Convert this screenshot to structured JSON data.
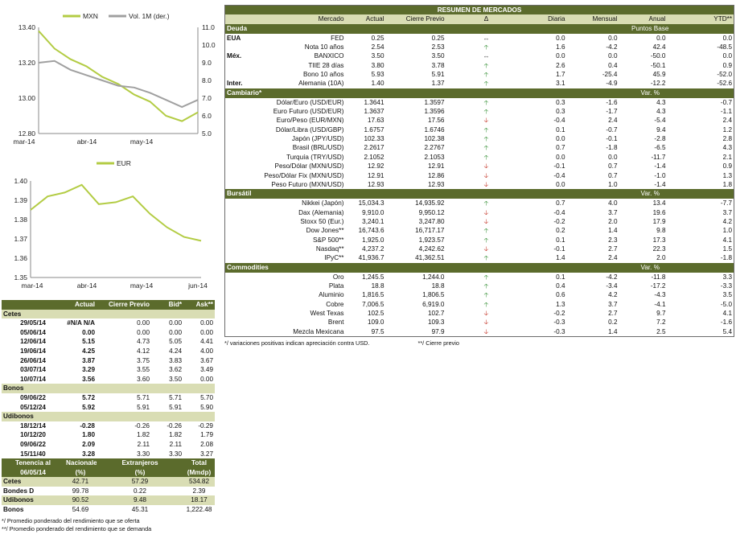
{
  "charts": [
    {
      "legend": [
        {
          "name": "MXN",
          "color": "#b3cc44"
        },
        {
          "name": "Vol. 1M (der.)",
          "color": "#a0a0a0"
        }
      ],
      "xlabels": [
        "mar-14",
        "abr-14",
        "may-14"
      ],
      "yleft": [
        "13.40",
        "13.20",
        "13.00",
        "12.80"
      ],
      "yright": [
        "11.0",
        "10.0",
        "9.0",
        "8.0",
        "7.0",
        "6.0",
        "5.0"
      ]
    },
    {
      "legend": [
        {
          "name": "EUR",
          "color": "#b3cc44"
        }
      ],
      "xlabels": [
        "mar-14",
        "abr-14",
        "may-14",
        "jun-14"
      ],
      "yleft": [
        "1.40",
        "1.39",
        "1.38",
        "1.37",
        "1.36",
        "1.35"
      ]
    }
  ],
  "chart_data": [
    {
      "type": "line",
      "x": [
        0,
        10,
        20,
        30,
        40,
        50,
        60,
        70,
        80,
        90,
        100
      ],
      "ylim": [
        12.8,
        13.4
      ],
      "y2lim": [
        5.0,
        11.0
      ],
      "series": [
        {
          "name": "MXN",
          "axis": "left",
          "values": [
            13.38,
            13.28,
            13.22,
            13.18,
            13.12,
            13.08,
            13.02,
            12.98,
            12.9,
            12.87,
            12.92
          ]
        },
        {
          "name": "Vol. 1M (der.)",
          "axis": "right",
          "values": [
            9.0,
            9.1,
            8.6,
            8.3,
            8.0,
            7.7,
            7.6,
            7.3,
            6.9,
            6.5,
            6.9
          ]
        }
      ]
    },
    {
      "type": "line",
      "x": [
        0,
        10,
        20,
        30,
        40,
        50,
        60,
        70,
        80,
        90,
        100
      ],
      "ylim": [
        1.35,
        1.4
      ],
      "series": [
        {
          "name": "EUR",
          "values": [
            1.385,
            1.392,
            1.394,
            1.398,
            1.388,
            1.389,
            1.392,
            1.383,
            1.376,
            1.371,
            1.369
          ]
        }
      ]
    }
  ],
  "right": {
    "title": "RESUMEN DE MERCADOS",
    "cols": [
      "Mercado",
      "Actual",
      "Cierre Previo",
      "Δ",
      "Diaria",
      "Mensual",
      "Anual",
      "YTD**"
    ],
    "sections": [
      {
        "name": "Deuda",
        "unit": "Puntos Base",
        "rows": [
          {
            "g": "EUA",
            "n": "FED",
            "a": "0.25",
            "p": "0.25",
            "d": "eq",
            "v": [
              "0.0",
              "0.0",
              "0.0",
              "0.0"
            ]
          },
          {
            "g": "",
            "n": "Nota 10 años",
            "a": "2.54",
            "p": "2.53",
            "d": "up",
            "v": [
              "1.6",
              "-4.2",
              "42.4",
              "-48.5"
            ]
          },
          {
            "g": "Méx.",
            "n": "BANXICO",
            "a": "3.50",
            "p": "3.50",
            "d": "eq",
            "v": [
              "0.0",
              "0.0",
              "-50.0",
              "0.0"
            ]
          },
          {
            "g": "",
            "n": "TIIE 28 días",
            "a": "3.80",
            "p": "3.78",
            "d": "up",
            "v": [
              "2.6",
              "0.4",
              "-50.1",
              "0.9"
            ]
          },
          {
            "g": "",
            "n": "Bono 10 años",
            "a": "5.93",
            "p": "5.91",
            "d": "up",
            "v": [
              "1.7",
              "-25.4",
              "45.9",
              "-52.0"
            ]
          },
          {
            "g": "Inter.",
            "n": "Alemania (10A)",
            "a": "1.40",
            "p": "1.37",
            "d": "up",
            "v": [
              "3.1",
              "-4.9",
              "-12.2",
              "-52.6"
            ]
          }
        ]
      },
      {
        "name": "Cambiario*",
        "unit": "Var. %",
        "rows": [
          {
            "g": "",
            "n": "Dólar/Euro (USD/EUR)",
            "a": "1.3641",
            "p": "1.3597",
            "d": "up",
            "v": [
              "0.3",
              "-1.6",
              "4.3",
              "-0.7"
            ]
          },
          {
            "g": "",
            "n": "Euro Futuro (USD/EUR)",
            "a": "1.3637",
            "p": "1.3596",
            "d": "up",
            "v": [
              "0.3",
              "-1.7",
              "4.3",
              "-1.1"
            ]
          },
          {
            "g": "",
            "n": "Euro/Peso  (EUR/MXN)",
            "a": "17.63",
            "p": "17.56",
            "d": "dn",
            "v": [
              "-0.4",
              "2.4",
              "-5.4",
              "2.4"
            ]
          },
          {
            "g": "",
            "n": "Dólar/Libra (USD/GBP)",
            "a": "1.6757",
            "p": "1.6746",
            "d": "up",
            "v": [
              "0.1",
              "-0.7",
              "9.4",
              "1.2"
            ]
          },
          {
            "g": "",
            "n": "Japón (JPY/USD)",
            "a": "102.33",
            "p": "102.38",
            "d": "up",
            "v": [
              "0.0",
              "-0.1",
              "-2.8",
              "2.8"
            ]
          },
          {
            "g": "",
            "n": "Brasil (BRL/USD)",
            "a": "2.2617",
            "p": "2.2767",
            "d": "up",
            "v": [
              "0.7",
              "-1.8",
              "-6.5",
              "4.3"
            ]
          },
          {
            "g": "",
            "n": "Turquía (TRY/USD)",
            "a": "2.1052",
            "p": "2.1053",
            "d": "up",
            "v": [
              "0.0",
              "0.0",
              "-11.7",
              "2.1"
            ]
          },
          {
            "g": "",
            "n": "Peso/Dólar (MXN/USD)",
            "a": "12.92",
            "p": "12.91",
            "d": "dn",
            "v": [
              "-0.1",
              "0.7",
              "-1.4",
              "0.9"
            ]
          },
          {
            "g": "",
            "n": "Peso/Dólar Fix (MXN/USD)",
            "a": "12.91",
            "p": "12.86",
            "d": "dn",
            "v": [
              "-0.4",
              "0.7",
              "-1.0",
              "1.3"
            ]
          },
          {
            "g": "",
            "n": "Peso Futuro (MXN/USD)",
            "a": "12.93",
            "p": "12.93",
            "d": "dn",
            "v": [
              "0.0",
              "1.0",
              "-1.4",
              "1.8"
            ]
          }
        ]
      },
      {
        "name": "Bursátil",
        "unit": "Var. %",
        "rows": [
          {
            "g": "",
            "n": "Nikkei (Japón)",
            "a": "15,034.3",
            "p": "14,935.92",
            "d": "up",
            "v": [
              "0.7",
              "4.0",
              "13.4",
              "-7.7"
            ]
          },
          {
            "g": "",
            "n": "Dax (Alemania)",
            "a": "9,910.0",
            "p": "9,950.12",
            "d": "dn",
            "v": [
              "-0.4",
              "3.7",
              "19.6",
              "3.7"
            ]
          },
          {
            "g": "",
            "n": "Stoxx 50 (Eur.)",
            "a": "3,240.1",
            "p": "3,247.80",
            "d": "dn",
            "v": [
              "-0.2",
              "2.0",
              "17.9",
              "4.2"
            ]
          },
          {
            "g": "",
            "n": "Dow Jones**",
            "a": "16,743.6",
            "p": "16,717.17",
            "d": "up",
            "v": [
              "0.2",
              "1.4",
              "9.8",
              "1.0"
            ]
          },
          {
            "g": "",
            "n": "S&P 500**",
            "a": "1,925.0",
            "p": "1,923.57",
            "d": "up",
            "v": [
              "0.1",
              "2.3",
              "17.3",
              "4.1"
            ]
          },
          {
            "g": "",
            "n": "Nasdaq**",
            "a": "4,237.2",
            "p": "4,242.62",
            "d": "dn",
            "v": [
              "-0.1",
              "2.7",
              "22.3",
              "1.5"
            ]
          },
          {
            "g": "",
            "n": "IPyC**",
            "a": "41,936.7",
            "p": "41,362.51",
            "d": "up",
            "v": [
              "1.4",
              "2.4",
              "2.0",
              "-1.8"
            ]
          }
        ]
      },
      {
        "name": "Commodities",
        "unit": "Var. %",
        "rows": [
          {
            "g": "",
            "n": "Oro",
            "a": "1,245.5",
            "p": "1,244.0",
            "d": "up",
            "v": [
              "0.1",
              "-4.2",
              "-11.8",
              "3.3"
            ]
          },
          {
            "g": "",
            "n": "Plata",
            "a": "18.8",
            "p": "18.8",
            "d": "up",
            "v": [
              "0.4",
              "-3.4",
              "-17.2",
              "-3.3"
            ]
          },
          {
            "g": "",
            "n": "Aluminio",
            "a": "1,816.5",
            "p": "1,806.5",
            "d": "up",
            "v": [
              "0.6",
              "4.2",
              "-4.3",
              "3.5"
            ]
          },
          {
            "g": "",
            "n": "Cobre",
            "a": "7,006.5",
            "p": "6,919.0",
            "d": "up",
            "v": [
              "1.3",
              "3.7",
              "-4.1",
              "-5.0"
            ]
          },
          {
            "g": "",
            "n": "West Texas",
            "a": "102.5",
            "p": "102.7",
            "d": "dn",
            "v": [
              "-0.2",
              "2.7",
              "9.7",
              "4.1"
            ]
          },
          {
            "g": "",
            "n": "Brent",
            "a": "109.0",
            "p": "109.3",
            "d": "dn",
            "v": [
              "-0.3",
              "0.2",
              "7.2",
              "-1.6"
            ]
          },
          {
            "g": "",
            "n": "Mezcla Mexicana",
            "a": "97.5",
            "p": "97.9",
            "d": "dn",
            "v": [
              "-0.3",
              "1.4",
              "2.5",
              "5.4"
            ]
          }
        ]
      }
    ],
    "foot1": "*/ variaciones positivas indican apreciación contra USD.",
    "foot2": "**/ Cierre previo"
  },
  "left": {
    "cols": [
      "",
      "Actual",
      "Cierre Previo",
      "Bid*",
      "Ask**"
    ],
    "sections": [
      {
        "name": "Cetes",
        "rows": [
          [
            "29/05/14",
            "#N/A N/A",
            "0.00",
            "0.00",
            "0.00"
          ],
          [
            "05/06/14",
            "0.00",
            "0.00",
            "0.00",
            "0.00"
          ],
          [
            "12/06/14",
            "5.15",
            "4.73",
            "5.05",
            "4.41"
          ],
          [
            "19/06/14",
            "4.25",
            "4.12",
            "4.24",
            "4.00"
          ],
          [
            "26/06/14",
            "3.87",
            "3.75",
            "3.83",
            "3.67"
          ],
          [
            "03/07/14",
            "3.29",
            "3.55",
            "3.62",
            "3.49"
          ],
          [
            "10/07/14",
            "3.56",
            "3.60",
            "3.50",
            "0.00"
          ]
        ]
      },
      {
        "name": "Bonos",
        "rows": [
          [
            "09/06/22",
            "5.72",
            "5.71",
            "5.71",
            "5.70"
          ],
          [
            "05/12/24",
            "5.92",
            "5.91",
            "5.91",
            "5.90"
          ]
        ]
      },
      {
        "name": "Udibonos",
        "rows": [
          [
            "18/12/14",
            "-0.28",
            "-0.26",
            "-0.26",
            "-0.29"
          ],
          [
            "10/12/20",
            "1.80",
            "1.82",
            "1.82",
            "1.79"
          ],
          [
            "09/06/22",
            "2.09",
            "2.11",
            "2.11",
            "2.08"
          ],
          [
            "15/11/40",
            "3.28",
            "3.30",
            "3.30",
            "3.27"
          ]
        ]
      }
    ],
    "ten_head": [
      [
        "Tenencia al",
        "Nacionales",
        "Extranjeros",
        "Total"
      ],
      [
        "06/05/14",
        "(%)",
        "(%)",
        "(Mmdp)"
      ]
    ],
    "ten_rows": [
      [
        "Cetes",
        "42.71",
        "57.29",
        "534.82"
      ],
      [
        "Bondes D",
        "99.78",
        "0.22",
        "2.39"
      ],
      [
        "Udibonos",
        "90.52",
        "9.48",
        "18.17"
      ],
      [
        "Bonos",
        "54.69",
        "45.31",
        "1,222.48"
      ]
    ],
    "foot1": "*/ Promedio ponderado del rendimiento que se oferta",
    "foot2": "**/ Promedio ponderado del rendimiento que se demanda"
  },
  "arrows": {
    "up": "🡡",
    "dn": "🡣",
    "eq": "↔"
  }
}
